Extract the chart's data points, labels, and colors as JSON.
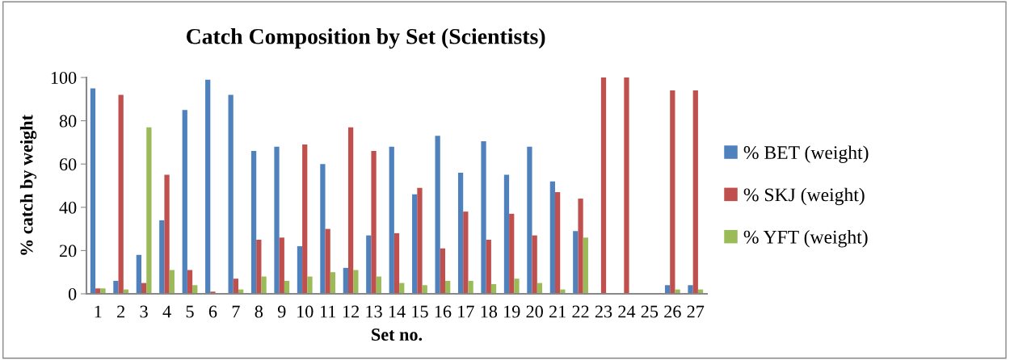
{
  "chart_data": {
    "type": "bar",
    "title": "Catch Composition by Set (Scientists)",
    "xlabel": "Set no.",
    "ylabel": "% catch by weight",
    "categories": [
      "1",
      "2",
      "3",
      "4",
      "5",
      "6",
      "7",
      "8",
      "9",
      "10",
      "11",
      "12",
      "13",
      "14",
      "15",
      "16",
      "17",
      "18",
      "19",
      "20",
      "21",
      "22",
      "23",
      "24",
      "25",
      "26",
      "27"
    ],
    "series": [
      {
        "name": "% BET (weight)",
        "color": "#4f81bd",
        "values": [
          95,
          6,
          18,
          34,
          85,
          99,
          92,
          66,
          68,
          22,
          60,
          12,
          27,
          68,
          46,
          73,
          56,
          70.5,
          55,
          68,
          52,
          29,
          0,
          0,
          0,
          4,
          4
        ]
      },
      {
        "name": "% SKJ (weight)",
        "color": "#c0504d",
        "values": [
          2.5,
          92,
          5,
          55,
          11,
          1,
          7,
          25,
          26,
          69,
          30,
          77,
          66,
          28,
          49,
          21,
          38,
          25,
          37,
          27,
          47,
          44,
          100,
          100,
          0,
          94,
          94
        ]
      },
      {
        "name": "% YFT (weight)",
        "color": "#9bbb59",
        "values": [
          2.5,
          2,
          77,
          11,
          4,
          0,
          2,
          8,
          6,
          8,
          10,
          11,
          8,
          5,
          4,
          6,
          6,
          4.5,
          7,
          5,
          2,
          26,
          0,
          0,
          0,
          2,
          2
        ]
      }
    ],
    "ylim": [
      0,
      100
    ],
    "yticks": [
      0,
      20,
      40,
      60,
      80,
      100
    ],
    "grid": false,
    "legend": "right"
  }
}
